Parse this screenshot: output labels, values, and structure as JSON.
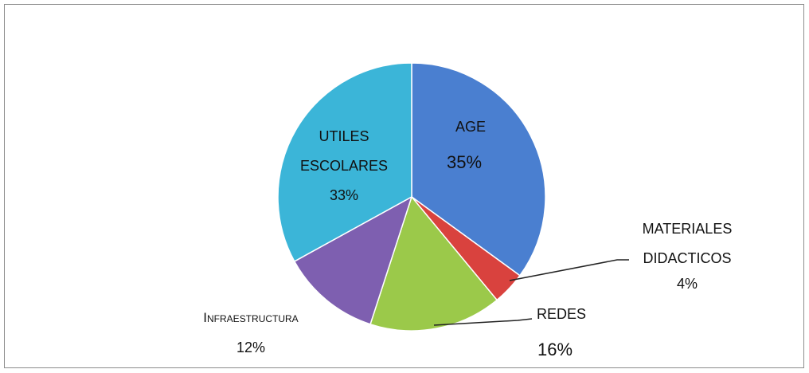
{
  "chart_data": {
    "type": "pie",
    "categories": [
      "AGE",
      "MATERIALES DIDACTICOS",
      "REDES",
      "Infraestructura",
      "UTILES ESCOLARES"
    ],
    "values": [
      35,
      4,
      16,
      12,
      33
    ],
    "value_labels": [
      "35%",
      "4%",
      "16%",
      "12%",
      "33%"
    ],
    "colors": [
      "#4a7fd0",
      "#d9423e",
      "#9bc94a",
      "#7e5fb0",
      "#3bb5d8"
    ]
  }
}
